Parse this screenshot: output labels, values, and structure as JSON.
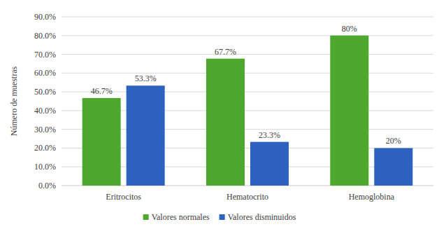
{
  "chart_data": {
    "type": "bar",
    "categories": [
      "Eritrocitos",
      "Hematocrito",
      "Hemoglobina"
    ],
    "series": [
      {
        "name": "Valores normales",
        "color": "#4ea72e",
        "values": [
          46.7,
          67.7,
          80
        ],
        "value_labels": [
          "46.7%",
          "67.7%",
          "80%"
        ]
      },
      {
        "name": "Valores disminuidos",
        "color": "#2e62c0",
        "values": [
          53.3,
          23.3,
          20
        ],
        "value_labels": [
          "53.3%",
          "23.3%",
          "20%"
        ]
      }
    ],
    "y_label": "Número de muestras",
    "ylim": [
      0,
      90
    ],
    "yticks": [
      {
        "value": 0,
        "label": "0.0%"
      },
      {
        "value": 10,
        "label": "10.0%"
      },
      {
        "value": 20,
        "label": "20.0%"
      },
      {
        "value": 30,
        "label": "30.0%"
      },
      {
        "value": 40,
        "label": "40.0%"
      },
      {
        "value": 50,
        "label": "50.0%"
      },
      {
        "value": 60,
        "label": "60.0%"
      },
      {
        "value": 70,
        "label": "70.0%"
      },
      {
        "value": 80,
        "label": "80.0%"
      },
      {
        "value": 90,
        "label": "90.0%"
      }
    ],
    "grid": true,
    "legend": "bottom",
    "data_labels": true
  }
}
